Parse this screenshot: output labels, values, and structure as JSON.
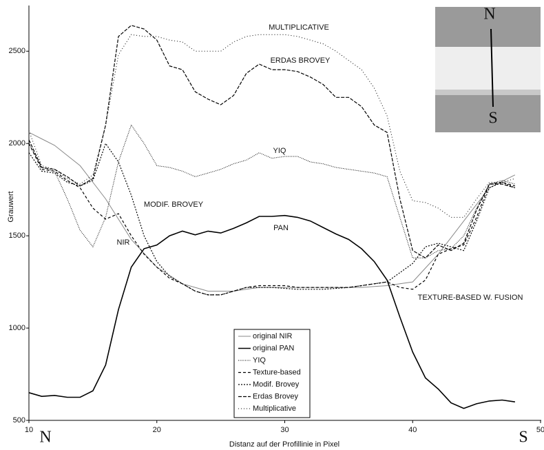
{
  "chart_data": {
    "type": "line",
    "xlabel": "Distanz auf der Profillinie in Pixel",
    "ylabel": "Grauwert",
    "xlim": [
      10,
      50
    ],
    "xticks": [
      10,
      20,
      30,
      40,
      50
    ],
    "ylim": [
      500,
      2740
    ],
    "yticks": [
      500,
      1000,
      1500,
      2000,
      2500
    ],
    "x": [
      10,
      11,
      12,
      13,
      14,
      15,
      16,
      17,
      18,
      19,
      20,
      21,
      22,
      23,
      24,
      25,
      26,
      27,
      28,
      29,
      30,
      31,
      32,
      33,
      34,
      35,
      36,
      37,
      38,
      39,
      40,
      41,
      42,
      43,
      44,
      45,
      46,
      47,
      48
    ],
    "series": [
      {
        "name": "original NIR",
        "color": "#888888",
        "width": 1,
        "dash": "none",
        "values": [
          2060,
          2025,
          1990,
          1935,
          1880,
          1790,
          1700,
          1590,
          1480,
          1405,
          1330,
          1285,
          1240,
          1220,
          1200,
          1200,
          1200,
          1210,
          1220,
          1220,
          1220,
          1220,
          1220,
          1220,
          1220,
          1220,
          1220,
          1225,
          1230,
          1240,
          1250,
          1325,
          1400,
          1490,
          1580,
          1670,
          1760,
          1795,
          1830
        ]
      },
      {
        "name": "original PAN",
        "color": "#000000",
        "width": 1.6,
        "dash": "none",
        "values": [
          650,
          630,
          635,
          625,
          625,
          660,
          800,
          1100,
          1330,
          1430,
          1450,
          1500,
          1525,
          1505,
          1525,
          1515,
          1540,
          1570,
          1605,
          1605,
          1610,
          1600,
          1580,
          1545,
          1510,
          1480,
          1430,
          1360,
          1260,
          1060,
          870,
          730,
          670,
          595,
          565,
          590,
          605,
          610,
          600
        ]
      },
      {
        "name": "YIQ",
        "color": "#000000",
        "width": 1,
        "dash": "1,1.5",
        "values": [
          2000,
          1870,
          1850,
          1700,
          1530,
          1440,
          1600,
          1900,
          2100,
          2000,
          1880,
          1870,
          1850,
          1820,
          1840,
          1860,
          1890,
          1910,
          1950,
          1920,
          1930,
          1930,
          1900,
          1890,
          1870,
          1860,
          1850,
          1840,
          1820,
          1600,
          1380,
          1380,
          1420,
          1430,
          1500,
          1650,
          1780,
          1800,
          1780
        ]
      },
      {
        "name": "Texture-based",
        "color": "#000000",
        "width": 1.2,
        "dash": "4,3",
        "values": [
          2000,
          1860,
          1850,
          1800,
          1760,
          1650,
          1590,
          1620,
          1500,
          1400,
          1330,
          1270,
          1240,
          1200,
          1180,
          1180,
          1200,
          1220,
          1230,
          1230,
          1230,
          1220,
          1220,
          1220,
          1220,
          1220,
          1230,
          1240,
          1250,
          1220,
          1210,
          1260,
          1400,
          1430,
          1450,
          1600,
          1780,
          1790,
          1770
        ]
      },
      {
        "name": "Modif. Brovey",
        "color": "#000000",
        "width": 1.2,
        "dash": "2,2",
        "values": [
          1950,
          1850,
          1840,
          1790,
          1770,
          1800,
          2000,
          1900,
          1720,
          1500,
          1360,
          1280,
          1240,
          1200,
          1180,
          1180,
          1200,
          1220,
          1220,
          1220,
          1215,
          1210,
          1210,
          1210,
          1215,
          1220,
          1230,
          1240,
          1250,
          1300,
          1350,
          1440,
          1460,
          1440,
          1420,
          1580,
          1760,
          1790,
          1760
        ]
      },
      {
        "name": "Erdas Brovey",
        "color": "#000000",
        "width": 1.2,
        "dash": "5,2",
        "values": [
          2020,
          1870,
          1860,
          1820,
          1770,
          1810,
          2100,
          2580,
          2640,
          2620,
          2560,
          2420,
          2400,
          2280,
          2240,
          2210,
          2260,
          2380,
          2430,
          2400,
          2400,
          2390,
          2360,
          2320,
          2250,
          2250,
          2200,
          2100,
          2060,
          1700,
          1420,
          1380,
          1450,
          1420,
          1460,
          1640,
          1780,
          1780,
          1760
        ]
      },
      {
        "name": "Multiplicative",
        "color": "#000000",
        "width": 1,
        "dash": "1,3",
        "values": [
          2070,
          1880,
          1860,
          1810,
          1780,
          1830,
          2100,
          2480,
          2590,
          2580,
          2580,
          2560,
          2550,
          2500,
          2500,
          2500,
          2550,
          2580,
          2590,
          2590,
          2590,
          2580,
          2560,
          2540,
          2500,
          2450,
          2400,
          2300,
          2150,
          1850,
          1690,
          1680,
          1650,
          1600,
          1600,
          1700,
          1790,
          1790,
          1810
        ]
      }
    ],
    "annotations": [
      "MULTIPLICATIVE",
      "ERDAS BROVEY",
      "YIQ",
      "MODIF. BROVEY",
      "PAN",
      "NIR",
      "TEXTURE-BASED W. FUSION"
    ],
    "direction_labels": [
      "N",
      "S"
    ],
    "inset_labels": [
      "N",
      "S"
    ]
  }
}
